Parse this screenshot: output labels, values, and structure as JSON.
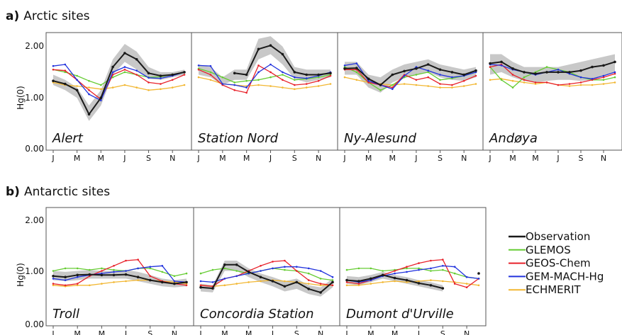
{
  "panel_a": {
    "letter": "a)",
    "title": "Arctic sites"
  },
  "panel_b": {
    "letter": "b)",
    "title": "Antarctic sites"
  },
  "ylabel": "Hg(0)",
  "yticks": [
    "0.00",
    "1.00",
    "2.00"
  ],
  "month_ticks": [
    "J",
    "M",
    "M",
    "J",
    "S",
    "N"
  ],
  "colors": {
    "Observation": "#1a1a1a",
    "GLEMOS": "#66cc33",
    "GEOS-Chem": "#e8222b",
    "GEM-MACH-Hg": "#2233dd",
    "ECHMERIT": "#f2b732",
    "band": "#b5b5b5"
  },
  "legend": [
    "Observation",
    "GLEMOS",
    "GEOS-Chem",
    "GEM-MACH-Hg",
    "ECHMERIT"
  ],
  "chart_data": [
    {
      "type": "line",
      "site": "Alert",
      "group": "a",
      "x": [
        1,
        2,
        3,
        4,
        5,
        6,
        7,
        8,
        9,
        10,
        11,
        12
      ],
      "ylim": [
        0,
        2.3
      ],
      "band": {
        "lower": [
          1.2,
          1.1,
          0.95,
          0.5,
          0.8,
          1.4,
          1.65,
          1.5,
          1.32,
          1.3,
          1.35,
          1.4
        ],
        "upper": [
          1.4,
          1.3,
          1.15,
          0.8,
          1.1,
          1.7,
          2.0,
          1.85,
          1.55,
          1.45,
          1.45,
          1.5
        ]
      },
      "series": [
        {
          "name": "Observation",
          "values": [
            1.28,
            1.22,
            1.1,
            0.63,
            0.95,
            1.55,
            1.82,
            1.7,
            1.43,
            1.38,
            1.4,
            1.45
          ]
        },
        {
          "name": "GLEMOS",
          "values": [
            1.5,
            1.45,
            1.38,
            1.28,
            1.2,
            1.35,
            1.45,
            1.4,
            1.35,
            1.36,
            1.4,
            1.45
          ]
        },
        {
          "name": "GEOS-Chem",
          "values": [
            1.5,
            1.48,
            1.3,
            1.1,
            0.92,
            1.4,
            1.5,
            1.4,
            1.25,
            1.22,
            1.3,
            1.4
          ]
        },
        {
          "name": "GEM-MACH-Hg",
          "values": [
            1.57,
            1.6,
            1.3,
            1.02,
            0.9,
            1.45,
            1.55,
            1.48,
            1.34,
            1.33,
            1.38,
            1.45
          ]
        },
        {
          "name": "ECHMERIT",
          "values": [
            1.25,
            1.2,
            1.18,
            1.15,
            1.12,
            1.15,
            1.2,
            1.15,
            1.1,
            1.12,
            1.15,
            1.2
          ]
        }
      ]
    },
    {
      "type": "line",
      "site": "Station Nord",
      "group": "a",
      "x": [
        1,
        2,
        3,
        4,
        5,
        6,
        7,
        8,
        9,
        10,
        11,
        12
      ],
      "ylim": [
        0,
        2.3
      ],
      "band": {
        "lower": [
          1.4,
          1.35,
          1.2,
          1.3,
          1.3,
          1.7,
          1.8,
          1.6,
          1.32,
          1.25,
          1.3,
          1.35
        ],
        "upper": [
          1.6,
          1.55,
          1.35,
          1.5,
          1.5,
          2.1,
          2.15,
          1.95,
          1.55,
          1.5,
          1.5,
          1.5
        ]
      },
      "series": [
        {
          "name": "Observation",
          "values": [
            null,
            null,
            null,
            1.43,
            1.4,
            1.9,
            1.97,
            1.8,
            1.45,
            1.4,
            1.4,
            1.43
          ]
        },
        {
          "name": "GLEMOS",
          "values": [
            1.52,
            1.45,
            1.35,
            1.25,
            1.28,
            1.3,
            1.35,
            1.4,
            1.3,
            1.32,
            1.35,
            1.4
          ]
        },
        {
          "name": "GEOS-Chem",
          "values": [
            1.5,
            1.4,
            1.2,
            1.1,
            1.05,
            1.58,
            1.45,
            1.3,
            1.2,
            1.22,
            1.28,
            1.38
          ]
        },
        {
          "name": "GEM-MACH-Hg",
          "values": [
            1.58,
            1.57,
            1.22,
            1.2,
            1.15,
            1.45,
            1.6,
            1.45,
            1.35,
            1.33,
            1.38,
            1.45
          ]
        },
        {
          "name": "ECHMERIT",
          "values": [
            1.35,
            1.3,
            1.22,
            1.2,
            1.18,
            1.2,
            1.18,
            1.15,
            1.12,
            1.15,
            1.18,
            1.22
          ]
        }
      ]
    },
    {
      "type": "line",
      "site": "Ny-Alesund",
      "group": "a",
      "x": [
        1,
        2,
        3,
        4,
        5,
        6,
        7,
        8,
        9,
        10,
        11,
        12
      ],
      "ylim": [
        0,
        2.3
      ],
      "band": {
        "lower": [
          1.4,
          1.4,
          1.15,
          1.05,
          1.25,
          1.35,
          1.4,
          1.45,
          1.35,
          1.3,
          1.28,
          1.35
        ],
        "upper": [
          1.65,
          1.65,
          1.4,
          1.35,
          1.5,
          1.6,
          1.65,
          1.7,
          1.6,
          1.55,
          1.5,
          1.55
        ]
      },
      "series": [
        {
          "name": "Observation",
          "values": [
            1.52,
            1.53,
            1.32,
            1.2,
            1.4,
            1.47,
            1.52,
            1.6,
            1.5,
            1.45,
            1.4,
            1.48
          ]
        },
        {
          "name": "GLEMOS",
          "values": [
            1.55,
            1.45,
            1.25,
            1.1,
            1.2,
            1.35,
            1.4,
            1.45,
            1.3,
            1.33,
            1.38,
            1.45
          ]
        },
        {
          "name": "GEOS-Chem",
          "values": [
            1.5,
            1.5,
            1.25,
            1.2,
            1.15,
            1.4,
            1.3,
            1.35,
            1.22,
            1.2,
            1.28,
            1.38
          ]
        },
        {
          "name": "GEM-MACH-Hg",
          "values": [
            1.58,
            1.62,
            1.28,
            1.2,
            1.12,
            1.38,
            1.55,
            1.48,
            1.4,
            1.35,
            1.38,
            1.45
          ]
        },
        {
          "name": "ECHMERIT",
          "values": [
            1.35,
            1.3,
            1.25,
            1.22,
            1.2,
            1.22,
            1.2,
            1.18,
            1.15,
            1.15,
            1.18,
            1.22
          ]
        }
      ]
    },
    {
      "type": "line",
      "site": "Andøya",
      "group": "a",
      "x": [
        1,
        2,
        3,
        4,
        5,
        6,
        7,
        8,
        9,
        10,
        11,
        12
      ],
      "ylim": [
        0,
        2.3
      ],
      "band": {
        "lower": [
          1.4,
          1.45,
          1.35,
          1.28,
          1.25,
          1.28,
          1.3,
          1.3,
          1.28,
          1.3,
          1.38,
          1.45
        ],
        "upper": [
          1.8,
          1.8,
          1.65,
          1.55,
          1.55,
          1.55,
          1.55,
          1.6,
          1.65,
          1.7,
          1.75,
          1.8
        ]
      },
      "series": [
        {
          "name": "Observation",
          "values": [
            1.62,
            1.65,
            1.52,
            1.45,
            1.42,
            1.45,
            1.45,
            1.45,
            1.48,
            1.55,
            1.58,
            1.65
          ]
        },
        {
          "name": "GLEMOS",
          "values": [
            1.55,
            1.3,
            1.15,
            1.35,
            1.45,
            1.55,
            1.5,
            1.45,
            1.35,
            1.3,
            1.3,
            1.35
          ]
        },
        {
          "name": "GEOS-Chem",
          "values": [
            1.55,
            1.6,
            1.4,
            1.3,
            1.25,
            1.25,
            1.2,
            1.22,
            1.25,
            1.3,
            1.35,
            1.42
          ]
        },
        {
          "name": "GEM-MACH-Hg",
          "values": [
            1.6,
            1.58,
            1.5,
            1.45,
            1.4,
            1.45,
            1.5,
            1.42,
            1.35,
            1.32,
            1.38,
            1.45
          ]
        },
        {
          "name": "ECHMERIT",
          "values": [
            1.3,
            1.32,
            1.28,
            1.25,
            1.22,
            1.25,
            1.2,
            1.18,
            1.2,
            1.2,
            1.22,
            1.25
          ]
        }
      ]
    },
    {
      "type": "line",
      "site": "Troll",
      "group": "b",
      "x": [
        1,
        2,
        3,
        4,
        5,
        6,
        7,
        8,
        9,
        10,
        11,
        12
      ],
      "ylim": [
        0,
        2.3
      ],
      "band": {
        "lower": [
          0.82,
          0.8,
          0.82,
          0.85,
          0.85,
          0.85,
          0.85,
          0.8,
          0.75,
          0.7,
          0.68,
          0.7
        ],
        "upper": [
          1.0,
          0.98,
          1.0,
          1.02,
          1.0,
          1.0,
          1.02,
          0.98,
          0.92,
          0.85,
          0.82,
          0.85
        ]
      },
      "series": [
        {
          "name": "Observation",
          "values": [
            0.9,
            0.88,
            0.92,
            0.93,
            0.92,
            0.92,
            0.93,
            0.88,
            0.82,
            0.78,
            0.75,
            0.78
          ]
        },
        {
          "name": "GLEMOS",
          "values": [
            1.0,
            1.05,
            1.05,
            1.02,
            1.05,
            1.02,
            1.0,
            1.05,
            1.05,
            0.98,
            0.9,
            0.95
          ]
        },
        {
          "name": "GEOS-Chem",
          "values": [
            0.75,
            0.72,
            0.75,
            0.9,
            1.0,
            1.1,
            1.2,
            1.22,
            0.9,
            0.8,
            0.75,
            0.72
          ]
        },
        {
          "name": "GEM-MACH-Hg",
          "values": [
            0.85,
            0.82,
            0.88,
            0.92,
            0.95,
            0.98,
            1.0,
            1.05,
            1.08,
            1.1,
            0.8,
            0.78
          ]
        },
        {
          "name": "ECHMERIT",
          "values": [
            0.72,
            0.7,
            0.72,
            0.72,
            0.75,
            0.78,
            0.8,
            0.82,
            0.82,
            0.8,
            0.78,
            0.75
          ]
        }
      ]
    },
    {
      "type": "line",
      "site": "Concordia Station",
      "group": "b",
      "x": [
        1,
        2,
        3,
        4,
        5,
        6,
        7,
        8,
        9,
        10,
        11,
        12
      ],
      "ylim": [
        0,
        2.3
      ],
      "band": {
        "lower": [
          0.6,
          0.58,
          1.0,
          1.0,
          0.88,
          0.78,
          0.7,
          0.6,
          0.65,
          0.55,
          0.5,
          0.68
        ],
        "upper": [
          0.75,
          0.72,
          1.2,
          1.2,
          1.05,
          0.95,
          0.88,
          0.8,
          0.85,
          0.72,
          0.68,
          0.85
        ]
      },
      "series": [
        {
          "name": "Observation",
          "values": [
            0.68,
            0.66,
            1.12,
            1.12,
            0.98,
            0.88,
            0.8,
            0.7,
            0.78,
            0.65,
            0.58,
            0.78
          ]
        },
        {
          "name": "GLEMOS",
          "values": [
            0.95,
            1.02,
            1.05,
            1.0,
            0.95,
            1.0,
            1.05,
            1.02,
            1.0,
            0.95,
            0.85,
            0.82
          ]
        },
        {
          "name": "GEOS-Chem",
          "values": [
            0.72,
            0.7,
            0.85,
            0.9,
            1.0,
            1.1,
            1.18,
            1.2,
            1.0,
            0.82,
            0.75,
            0.72
          ]
        },
        {
          "name": "GEM-MACH-Hg",
          "values": [
            0.8,
            0.78,
            0.85,
            0.9,
            0.95,
            1.0,
            1.05,
            1.08,
            1.08,
            1.05,
            1.0,
            0.88
          ]
        },
        {
          "name": "ECHMERIT",
          "values": [
            0.72,
            0.7,
            0.72,
            0.75,
            0.78,
            0.8,
            0.82,
            0.8,
            0.78,
            0.75,
            0.72,
            0.72
          ]
        }
      ]
    },
    {
      "type": "line",
      "site": "Dumont d'Urville",
      "group": "b",
      "x": [
        1,
        2,
        3,
        4,
        5,
        6,
        7,
        8,
        9,
        10,
        11,
        12
      ],
      "ylim": [
        0,
        2.3
      ],
      "band": {
        "lower": [
          0.75,
          0.72,
          0.78,
          0.85,
          0.8,
          0.75,
          0.7,
          0.65,
          0.6,
          null,
          null,
          null
        ],
        "upper": [
          0.9,
          0.88,
          0.92,
          0.98,
          0.92,
          0.88,
          0.82,
          0.78,
          0.72,
          null,
          null,
          null
        ]
      },
      "series": [
        {
          "name": "Observation",
          "values": [
            0.82,
            0.8,
            0.85,
            0.92,
            0.86,
            0.82,
            0.76,
            0.72,
            0.66,
            null,
            null,
            0.95
          ]
        },
        {
          "name": "GLEMOS",
          "values": [
            1.02,
            1.05,
            1.05,
            1.0,
            1.02,
            1.05,
            1.05,
            1.0,
            1.02,
            0.95,
            0.88,
            0.85
          ]
        },
        {
          "name": "GEOS-Chem",
          "values": [
            0.78,
            0.75,
            0.82,
            0.92,
            1.0,
            1.08,
            1.15,
            1.2,
            1.22,
            0.75,
            0.68,
            0.85
          ]
        },
        {
          "name": "GEM-MACH-Hg",
          "values": [
            0.82,
            0.78,
            0.82,
            0.9,
            0.95,
            0.98,
            1.02,
            1.05,
            1.1,
            1.08,
            0.88,
            0.85
          ]
        },
        {
          "name": "ECHMERIT",
          "values": [
            0.72,
            0.72,
            0.75,
            0.78,
            0.8,
            0.78,
            0.8,
            0.82,
            0.8,
            0.78,
            0.75,
            0.72
          ]
        }
      ]
    }
  ]
}
